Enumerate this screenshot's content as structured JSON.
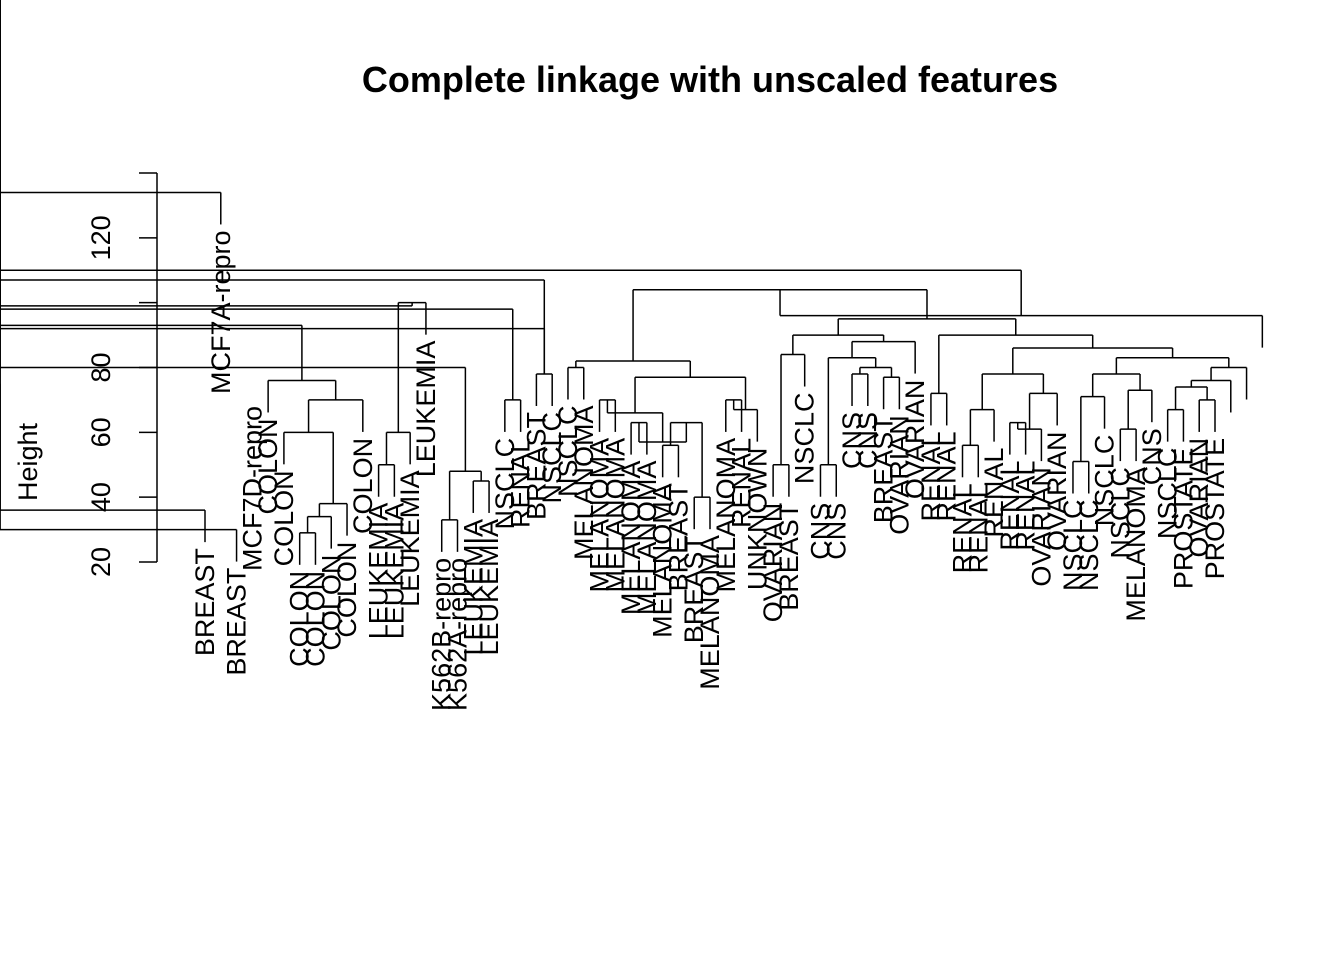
{
  "chart_data": {
    "type": "dendrogram",
    "title": "Complete linkage with unscaled features",
    "ylabel": "Height",
    "ylim": [
      20,
      140
    ],
    "yticks": [
      20,
      40,
      60,
      80,
      100,
      120,
      140
    ],
    "ytick_labels": [
      "20",
      "40",
      "60",
      "80",
      "",
      "120",
      ""
    ],
    "leaves": [
      "BREAST",
      "MCF7A-repro",
      "BREAST",
      "MCF7D-repro",
      "COLON",
      "COLON",
      "COLON",
      "COLON",
      "COLON",
      "COLON",
      "COLON",
      "LEUKEMIA",
      "LEUKEMIA",
      "LEUKEMIA",
      "LEUKEMIA",
      "K562B-repro",
      "K562A-repro",
      "LEUKEMIA",
      "LEUKEMIA",
      "NSCLC",
      "RENAL",
      "BREAST",
      "NSCLC",
      "NSCLC",
      "MELANOMA",
      "MELANOMA",
      "MELANOMA",
      "MELANOMA",
      "MELANOMA",
      "MELANOMA",
      "BREAST",
      "BREAST",
      "MELANOMA",
      "MELANOMA",
      "RENAL",
      "UNKNOWN",
      "OVARIAN",
      "BREAST",
      "NSCLC",
      "CNS",
      "CNS",
      "CNS",
      "CNS",
      "BREAST",
      "OVARIAN",
      "OVARIAN",
      "RENAL",
      "RENAL",
      "RENAL",
      "RENAL",
      "RENAL",
      "RENAL",
      "RENAL",
      "OVARIAN",
      "OVARIAN",
      "NSCLC",
      "NSCLC",
      "NSCLC",
      "NSCLC",
      "MELANOMA",
      "CNS",
      "NSCLC",
      "PROSTATE",
      "OVARIAN",
      "PROSTATE"
    ],
    "merges": [
      [
        -1,
        1,
        36
      ],
      [
        -3,
        4,
        30
      ],
      [
        1,
        2,
        75
      ],
      [
        -7,
        -8,
        29
      ],
      [
        4,
        -9,
        34
      ],
      [
        5,
        -10,
        38
      ],
      [
        -6,
        6,
        60
      ],
      [
        -11,
        7,
        70
      ],
      [
        -5,
        8,
        76
      ],
      [
        -12,
        -13,
        50
      ],
      [
        -14,
        10,
        60
      ],
      [
        -15,
        11,
        100
      ],
      [
        -16,
        -17,
        33
      ],
      [
        -18,
        -19,
        45
      ],
      [
        13,
        14,
        48
      ],
      [
        15,
        16,
        80
      ],
      [
        -20,
        -21,
        70
      ],
      [
        17,
        18,
        98
      ],
      [
        12,
        19,
        99
      ],
      [
        -22,
        -23,
        78
      ],
      [
        20,
        21,
        92
      ],
      [
        -24,
        -25,
        80
      ],
      [
        -26,
        -27,
        70
      ],
      [
        -28,
        -29,
        63
      ],
      [
        -30,
        -31,
        56
      ],
      [
        -32,
        -33,
        40
      ],
      [
        25,
        26,
        63
      ],
      [
        24,
        27,
        57
      ],
      [
        23,
        28,
        66
      ],
      [
        -34,
        -35,
        70
      ],
      [
        -36,
        30,
        67
      ],
      [
        29,
        31,
        77
      ],
      [
        22,
        32,
        82
      ],
      [
        -37,
        -38,
        50
      ],
      [
        -39,
        34,
        84
      ],
      [
        -40,
        -41,
        50
      ],
      [
        -42,
        -43,
        78
      ],
      [
        -44,
        -45,
        77
      ],
      [
        37,
        38,
        80
      ],
      [
        36,
        39,
        83
      ],
      [
        -46,
        40,
        88
      ],
      [
        35,
        41,
        90
      ],
      [
        -47,
        -48,
        72
      ],
      [
        -49,
        -50,
        56
      ],
      [
        -51,
        44,
        67
      ],
      [
        -52,
        -53,
        63
      ],
      [
        -54,
        46,
        61
      ],
      [
        -55,
        47,
        72
      ],
      [
        45,
        48,
        78
      ],
      [
        -56,
        -57,
        51
      ],
      [
        -58,
        50,
        71
      ],
      [
        -59,
        -60,
        61
      ],
      [
        -61,
        52,
        73
      ],
      [
        51,
        53,
        78
      ],
      [
        -62,
        -63,
        67
      ],
      [
        -64,
        -65,
        70
      ],
      [
        55,
        56,
        74
      ],
      [
        57,
        -66,
        76
      ],
      [
        -67,
        58,
        80
      ],
      [
        54,
        59,
        83
      ],
      [
        49,
        60,
        86
      ],
      [
        43,
        61,
        90
      ],
      [
        42,
        62,
        95
      ],
      [
        33,
        63,
        104
      ],
      [
        64,
        -68,
        96
      ],
      [
        21,
        65,
        110
      ],
      [
        9,
        3,
        93
      ],
      [
        67,
        20,
        107
      ],
      [
        68,
        66,
        120
      ],
      [
        69,
        -2,
        134
      ]
    ]
  }
}
